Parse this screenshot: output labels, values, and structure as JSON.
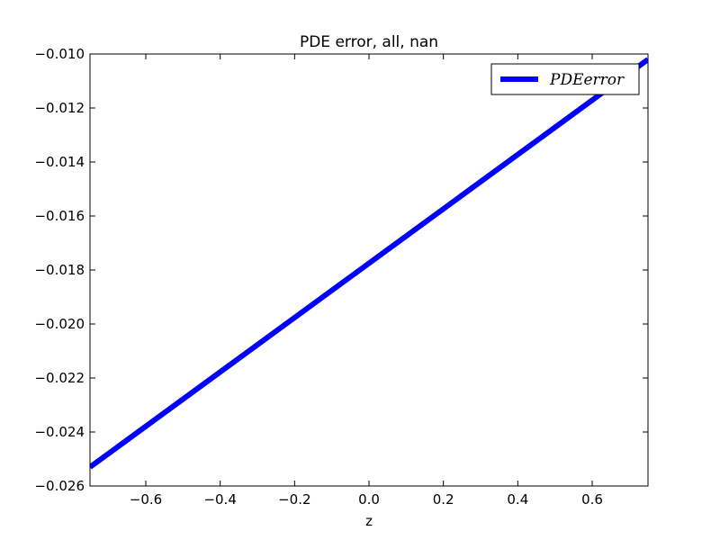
{
  "chart_data": {
    "type": "line",
    "title": "PDE error, all, nan",
    "xlabel": "z",
    "ylabel": "",
    "xlim": [
      -0.75,
      0.75
    ],
    "ylim": [
      -0.026,
      -0.01
    ],
    "xticks": [
      -0.6,
      -0.4,
      -0.2,
      0.0,
      0.2,
      0.4,
      0.6
    ],
    "xtick_labels": [
      "−0.6",
      "−0.4",
      "−0.2",
      "0.0",
      "0.2",
      "0.4",
      "0.6"
    ],
    "yticks": [
      -0.026,
      -0.024,
      -0.022,
      -0.02,
      -0.018,
      -0.016,
      -0.014,
      -0.012,
      -0.01
    ],
    "ytick_labels": [
      "−0.026",
      "−0.024",
      "−0.022",
      "−0.020",
      "−0.018",
      "−0.016",
      "−0.014",
      "−0.012",
      "−0.010"
    ],
    "grid": false,
    "legend": {
      "position": "top-right",
      "label": "PDEerror"
    },
    "series": [
      {
        "name": "PDEerror",
        "color": "#0000ff",
        "x": [
          -0.75,
          0.75
        ],
        "y": [
          -0.0253,
          -0.0102
        ]
      }
    ]
  }
}
